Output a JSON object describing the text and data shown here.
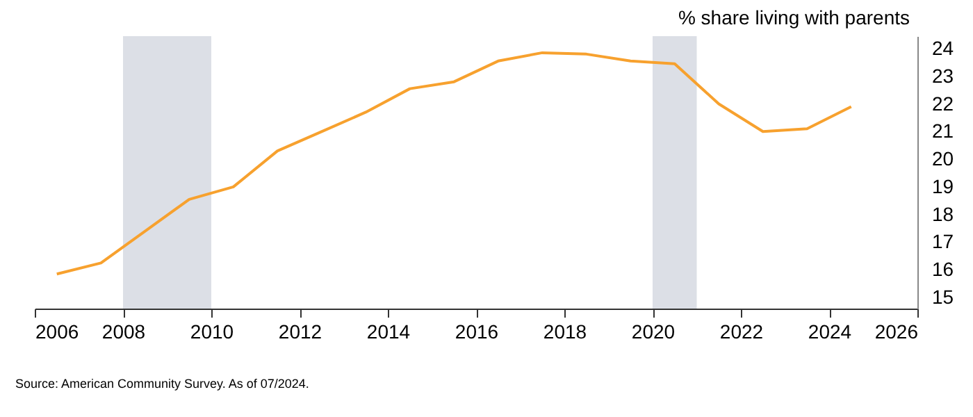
{
  "chart_data": {
    "type": "line",
    "ylabel": "% share living with parents",
    "x": [
      2006.5,
      2007.5,
      2008.5,
      2009.5,
      2010.5,
      2011.5,
      2012.5,
      2013.5,
      2014.5,
      2015.5,
      2016.5,
      2017.5,
      2018.5,
      2019.5,
      2020.5,
      2021.5,
      2022.5,
      2023.5,
      2024.5
    ],
    "series": [
      {
        "color": "#f7a12e",
        "values": [
          15.85,
          16.25,
          17.4,
          18.55,
          19.0,
          20.3,
          21.0,
          21.7,
          22.55,
          22.8,
          23.55,
          23.85,
          23.8,
          23.55,
          23.45,
          22.0,
          21.0,
          21.1,
          21.9
        ]
      }
    ],
    "xlim": [
      2006,
      2026
    ],
    "xticks": [
      2006,
      2008,
      2010,
      2012,
      2014,
      2016,
      2018,
      2020,
      2022,
      2024,
      2026
    ],
    "ylim": [
      14.6,
      24.45
    ],
    "yticks": [
      15,
      16,
      17,
      18,
      19,
      20,
      21,
      22,
      23,
      24
    ],
    "bands": [
      {
        "axis": "x",
        "from": 2008,
        "to": 2010,
        "color": "#dcdfe6"
      },
      {
        "axis": "x",
        "from": 2020,
        "to": 2021,
        "color": "#dcdfe6"
      }
    ],
    "annotations": [
      "Source: American Community Survey. As of 07/2024."
    ],
    "grid": false,
    "marker": "none",
    "line_style": "solid"
  }
}
